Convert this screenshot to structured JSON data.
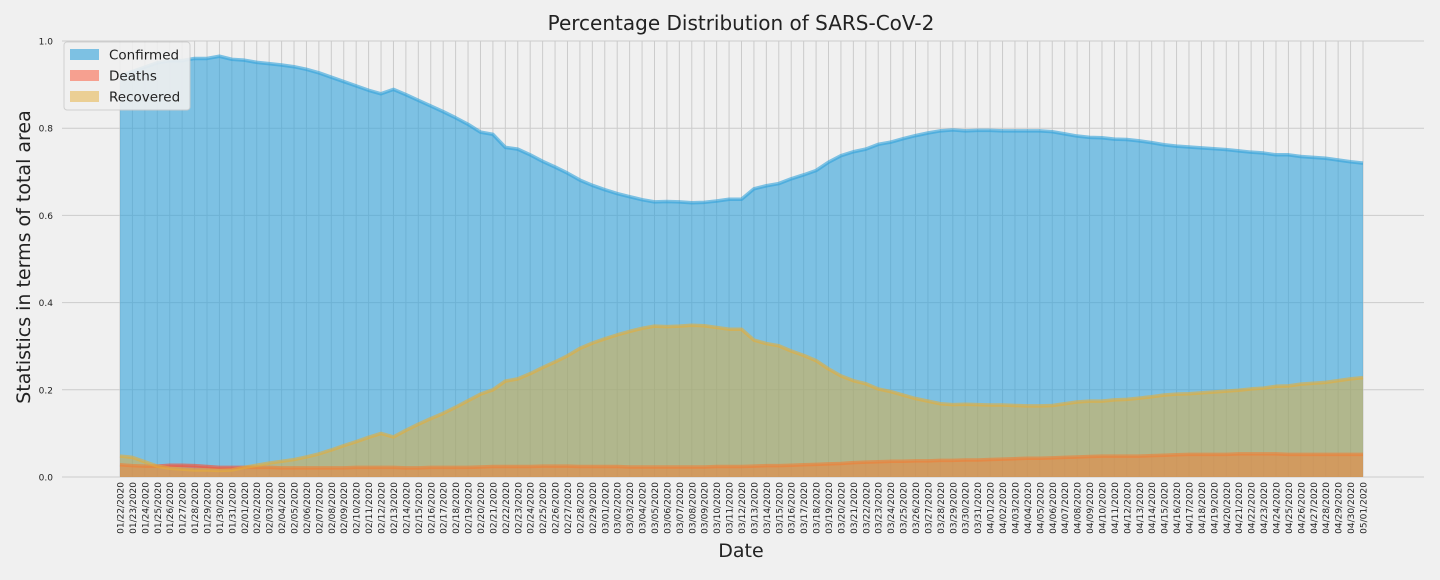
{
  "colors": {
    "background": "#f0f0f0",
    "grid": "#cbcbcb",
    "confirmed": "#30a2da",
    "deaths": "#fc4f30",
    "recovered": "#e5ae38"
  },
  "chart_data": {
    "type": "area",
    "title": "Percentage Distribution of SARS-CoV-2",
    "xlabel": "Date",
    "ylabel": "Statistics in terms of total area",
    "ylim": [
      0.0,
      1.0
    ],
    "yticks": [
      "0.0",
      "0.2",
      "0.4",
      "0.6",
      "0.8",
      "1.0"
    ],
    "grid": true,
    "legend_position": "upper-left",
    "categories": [
      "01/22/2020",
      "01/23/2020",
      "01/24/2020",
      "01/25/2020",
      "01/26/2020",
      "01/27/2020",
      "01/28/2020",
      "01/29/2020",
      "01/30/2020",
      "01/31/2020",
      "02/01/2020",
      "02/02/2020",
      "02/03/2020",
      "02/04/2020",
      "02/05/2020",
      "02/06/2020",
      "02/07/2020",
      "02/08/2020",
      "02/09/2020",
      "02/10/2020",
      "02/11/2020",
      "02/12/2020",
      "02/13/2020",
      "02/14/2020",
      "02/15/2020",
      "02/16/2020",
      "02/17/2020",
      "02/18/2020",
      "02/19/2020",
      "02/20/2020",
      "02/21/2020",
      "02/22/2020",
      "02/23/2020",
      "02/24/2020",
      "02/25/2020",
      "02/26/2020",
      "02/27/2020",
      "02/28/2020",
      "02/29/2020",
      "03/01/2020",
      "03/02/2020",
      "03/03/2020",
      "03/04/2020",
      "03/05/2020",
      "03/06/2020",
      "03/07/2020",
      "03/08/2020",
      "03/09/2020",
      "03/10/2020",
      "03/11/2020",
      "03/12/2020",
      "03/13/2020",
      "03/14/2020",
      "03/15/2020",
      "03/16/2020",
      "03/17/2020",
      "03/18/2020",
      "03/19/2020",
      "03/20/2020",
      "03/21/2020",
      "03/22/2020",
      "03/23/2020",
      "03/24/2020",
      "03/25/2020",
      "03/26/2020",
      "03/27/2020",
      "03/28/2020",
      "03/29/2020",
      "03/30/2020",
      "03/31/2020",
      "04/01/2020",
      "04/02/2020",
      "04/03/2020",
      "04/04/2020",
      "04/05/2020",
      "04/06/2020",
      "04/07/2020",
      "04/08/2020",
      "04/09/2020",
      "04/10/2020",
      "04/11/2020",
      "04/12/2020",
      "04/13/2020",
      "04/14/2020",
      "04/15/2020",
      "04/16/2020",
      "04/17/2020",
      "04/18/2020",
      "04/19/2020",
      "04/20/2020",
      "04/21/2020",
      "04/22/2020",
      "04/23/2020",
      "04/24/2020",
      "04/25/2020",
      "04/26/2020",
      "04/27/2020",
      "04/28/2020",
      "04/29/2020",
      "04/30/2020",
      "05/01/2020"
    ],
    "series": [
      {
        "name": "Confirmed",
        "values": [
          0.92,
          0.93,
          0.94,
          0.95,
          0.955,
          0.955,
          0.96,
          0.96,
          0.965,
          0.958,
          0.956,
          0.951,
          0.948,
          0.945,
          0.941,
          0.935,
          0.927,
          0.917,
          0.907,
          0.897,
          0.887,
          0.879,
          0.889,
          0.877,
          0.864,
          0.851,
          0.838,
          0.824,
          0.809,
          0.791,
          0.786,
          0.756,
          0.752,
          0.739,
          0.724,
          0.711,
          0.697,
          0.681,
          0.669,
          0.659,
          0.65,
          0.643,
          0.636,
          0.631,
          0.632,
          0.631,
          0.629,
          0.63,
          0.633,
          0.637,
          0.637,
          0.661,
          0.668,
          0.673,
          0.684,
          0.693,
          0.703,
          0.722,
          0.737,
          0.746,
          0.752,
          0.763,
          0.768,
          0.776,
          0.783,
          0.789,
          0.794,
          0.796,
          0.794,
          0.795,
          0.795,
          0.794,
          0.794,
          0.794,
          0.794,
          0.792,
          0.787,
          0.782,
          0.779,
          0.778,
          0.775,
          0.774,
          0.771,
          0.767,
          0.762,
          0.759,
          0.757,
          0.755,
          0.753,
          0.751,
          0.748,
          0.745,
          0.743,
          0.739,
          0.739,
          0.735,
          0.733,
          0.731,
          0.727,
          0.723,
          0.72
        ]
      },
      {
        "name": "Deaths",
        "values": [
          0.028,
          0.026,
          0.025,
          0.025,
          0.027,
          0.027,
          0.026,
          0.024,
          0.022,
          0.022,
          0.022,
          0.022,
          0.022,
          0.021,
          0.021,
          0.021,
          0.021,
          0.021,
          0.021,
          0.022,
          0.022,
          0.022,
          0.022,
          0.021,
          0.021,
          0.022,
          0.022,
          0.022,
          0.022,
          0.023,
          0.024,
          0.024,
          0.024,
          0.024,
          0.025,
          0.025,
          0.025,
          0.024,
          0.024,
          0.024,
          0.024,
          0.023,
          0.023,
          0.023,
          0.023,
          0.023,
          0.023,
          0.023,
          0.024,
          0.024,
          0.024,
          0.025,
          0.026,
          0.026,
          0.027,
          0.028,
          0.029,
          0.03,
          0.031,
          0.033,
          0.034,
          0.035,
          0.036,
          0.036,
          0.037,
          0.037,
          0.038,
          0.038,
          0.039,
          0.039,
          0.04,
          0.041,
          0.042,
          0.043,
          0.043,
          0.044,
          0.045,
          0.046,
          0.047,
          0.048,
          0.048,
          0.048,
          0.048,
          0.049,
          0.05,
          0.051,
          0.052,
          0.052,
          0.052,
          0.052,
          0.053,
          0.053,
          0.053,
          0.053,
          0.052,
          0.052,
          0.052,
          0.052,
          0.052,
          0.052,
          0.052
        ]
      },
      {
        "name": "Recovered",
        "values": [
          0.048,
          0.045,
          0.035,
          0.025,
          0.02,
          0.018,
          0.016,
          0.016,
          0.015,
          0.016,
          0.022,
          0.027,
          0.032,
          0.036,
          0.04,
          0.046,
          0.053,
          0.062,
          0.072,
          0.081,
          0.091,
          0.1,
          0.092,
          0.107,
          0.121,
          0.134,
          0.146,
          0.16,
          0.175,
          0.19,
          0.2,
          0.22,
          0.225,
          0.237,
          0.251,
          0.264,
          0.278,
          0.295,
          0.307,
          0.317,
          0.326,
          0.334,
          0.341,
          0.346,
          0.345,
          0.346,
          0.348,
          0.347,
          0.343,
          0.339,
          0.339,
          0.314,
          0.306,
          0.301,
          0.289,
          0.279,
          0.267,
          0.248,
          0.232,
          0.221,
          0.214,
          0.202,
          0.196,
          0.188,
          0.18,
          0.174,
          0.168,
          0.166,
          0.167,
          0.166,
          0.165,
          0.165,
          0.164,
          0.163,
          0.163,
          0.164,
          0.168,
          0.172,
          0.174,
          0.174,
          0.177,
          0.178,
          0.181,
          0.184,
          0.188,
          0.19,
          0.191,
          0.193,
          0.195,
          0.197,
          0.199,
          0.202,
          0.204,
          0.208,
          0.209,
          0.213,
          0.215,
          0.217,
          0.221,
          0.225,
          0.228
        ]
      }
    ]
  }
}
